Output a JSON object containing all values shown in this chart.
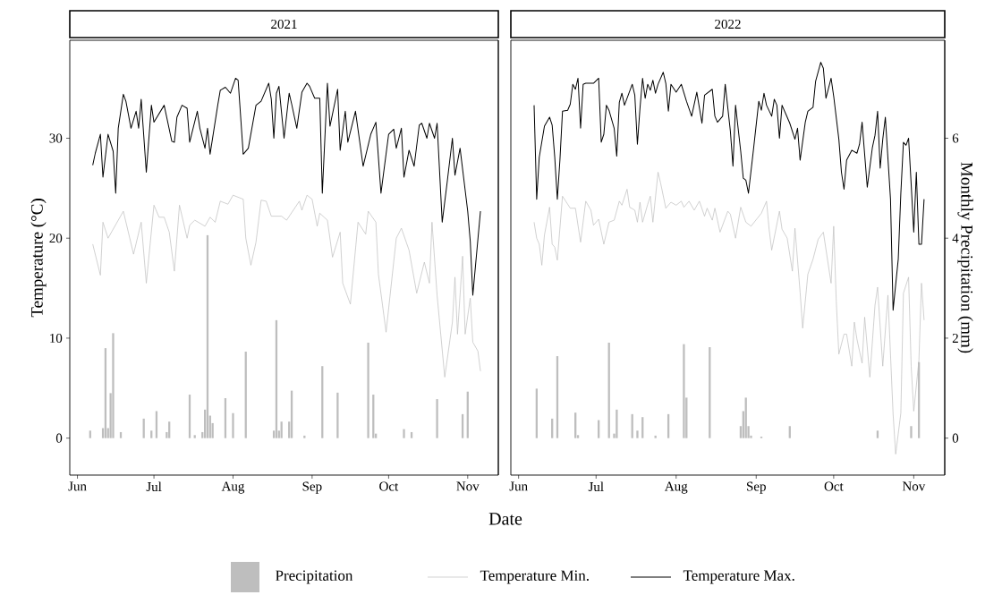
{
  "chart_data": [
    {
      "type": "line",
      "title": "2021",
      "xlabel": "Date",
      "ylabel": "Temperature (°C)",
      "legend": "bottom",
      "tick_labels": [
        "x",
        "y"
      ],
      "xlim": [
        "2021-05-29",
        "2021-11-13"
      ],
      "xticks": [
        {
          "value": "2021-06-01",
          "label": "Jun"
        },
        {
          "value": "2021-07-01",
          "label": "Jul"
        },
        {
          "value": "2021-08-01",
          "label": "Aug"
        },
        {
          "value": "2021-09-01",
          "label": "Sep"
        },
        {
          "value": "2021-10-01",
          "label": "Oct"
        },
        {
          "value": "2021-11-01",
          "label": "Nov"
        }
      ],
      "ylim": [
        -3.7,
        39.8
      ],
      "yticks": [
        0,
        10,
        20,
        30
      ],
      "y2lim": [
        -0.74,
        7.96
      ],
      "series": [
        {
          "name": "Precipitation",
          "type": "bar",
          "axis": "y2",
          "color": "#bebebe",
          "x": [
            "2021-06-06",
            "2021-06-11",
            "2021-06-12",
            "2021-06-13",
            "2021-06-14",
            "2021-06-15",
            "2021-06-18",
            "2021-06-27",
            "2021-06-30",
            "2021-07-02",
            "2021-07-06",
            "2021-07-07",
            "2021-07-15",
            "2021-07-17",
            "2021-07-20",
            "2021-07-21",
            "2021-07-22",
            "2021-07-23",
            "2021-07-24",
            "2021-07-29",
            "2021-08-01",
            "2021-08-06",
            "2021-08-17",
            "2021-08-18",
            "2021-08-19",
            "2021-08-20",
            "2021-08-23",
            "2021-08-24",
            "2021-08-29",
            "2021-09-05",
            "2021-09-11",
            "2021-09-23",
            "2021-09-25",
            "2021-09-26",
            "2021-10-07",
            "2021-10-10",
            "2021-10-20",
            "2021-10-30",
            "2021-11-01"
          ],
          "values": [
            0.15,
            0.2,
            1.8,
            0.2,
            0.9,
            2.1,
            0.12,
            0.39,
            0.15,
            0.54,
            0.12,
            0.33,
            0.87,
            0.06,
            0.12,
            0.57,
            4.06,
            0.45,
            0.3,
            0.8,
            0.5,
            1.73,
            0.15,
            2.36,
            0.15,
            0.33,
            0.33,
            0.95,
            0.05,
            1.44,
            0.91,
            1.91,
            0.87,
            0.09,
            0.18,
            0.12,
            0.78,
            0.48,
            0.93
          ]
        },
        {
          "name": "Temperature Min.",
          "color": "#bdbdbd",
          "x": [
            "2021-06-07",
            "2021-06-10",
            "2021-06-11",
            "2021-06-13",
            "2021-06-15",
            "2021-06-19",
            "2021-06-23",
            "2021-06-26",
            "2021-06-28",
            "2021-07-01",
            "2021-07-03",
            "2021-07-05",
            "2021-07-07",
            "2021-07-09",
            "2021-07-11",
            "2021-07-14",
            "2021-07-15",
            "2021-07-17",
            "2021-07-21",
            "2021-07-23",
            "2021-07-25",
            "2021-07-27",
            "2021-07-30",
            "2021-08-01",
            "2021-08-05",
            "2021-08-06",
            "2021-08-08",
            "2021-08-10",
            "2021-08-12",
            "2021-08-14",
            "2021-08-16",
            "2021-08-20",
            "2021-08-22",
            "2021-08-27",
            "2021-08-28",
            "2021-08-30",
            "2021-09-01",
            "2021-09-03",
            "2021-09-04",
            "2021-09-07",
            "2021-09-09",
            "2021-09-12",
            "2021-09-13",
            "2021-09-16",
            "2021-09-19",
            "2021-09-22",
            "2021-09-23",
            "2021-09-26",
            "2021-09-27",
            "2021-09-30",
            "2021-10-04",
            "2021-10-06",
            "2021-10-09",
            "2021-10-12",
            "2021-10-15",
            "2021-10-17",
            "2021-10-18",
            "2021-10-20",
            "2021-10-23",
            "2021-10-26",
            "2021-10-27",
            "2021-10-28",
            "2021-10-30",
            "2021-10-31",
            "2021-11-02",
            "2021-11-03",
            "2021-11-05",
            "2021-11-06"
          ],
          "values": [
            19.4,
            16.3,
            21.6,
            20.0,
            20.9,
            22.7,
            18.4,
            21.6,
            15.5,
            23.3,
            22.1,
            22.1,
            20.6,
            16.7,
            23.3,
            20.0,
            21.3,
            21.8,
            21.2,
            22.1,
            21.6,
            23.7,
            23.4,
            24.3,
            23.9,
            20.0,
            17.3,
            19.6,
            23.8,
            23.7,
            22.2,
            22.2,
            21.8,
            23.7,
            22.8,
            24.3,
            23.9,
            21.2,
            22.5,
            21.8,
            18.1,
            20.6,
            15.5,
            13.4,
            21.6,
            20.4,
            22.7,
            21.6,
            16.4,
            10.6,
            20.0,
            21.0,
            18.8,
            14.5,
            17.6,
            15.5,
            21.6,
            14.3,
            6.1,
            11.6,
            16.1,
            10.4,
            18.2,
            10.4,
            14.0,
            9.6,
            8.7,
            6.7
          ]
        },
        {
          "name": "Temperature Max.",
          "color": "#000000",
          "x": [
            "2021-06-07",
            "2021-06-08",
            "2021-06-10",
            "2021-06-11",
            "2021-06-13",
            "2021-06-15",
            "2021-06-16",
            "2021-06-17",
            "2021-06-19",
            "2021-06-20",
            "2021-06-22",
            "2021-06-24",
            "2021-06-25",
            "2021-06-26",
            "2021-06-28",
            "2021-06-30",
            "2021-07-01",
            "2021-07-05",
            "2021-07-08",
            "2021-07-09",
            "2021-07-10",
            "2021-07-12",
            "2021-07-14",
            "2021-07-15",
            "2021-07-18",
            "2021-07-19",
            "2021-07-21",
            "2021-07-22",
            "2021-07-23",
            "2021-07-26",
            "2021-07-27",
            "2021-07-29",
            "2021-07-31",
            "2021-08-02",
            "2021-08-03",
            "2021-08-05",
            "2021-08-07",
            "2021-08-10",
            "2021-08-12",
            "2021-08-15",
            "2021-08-16",
            "2021-08-17",
            "2021-08-18",
            "2021-08-19",
            "2021-08-21",
            "2021-08-23",
            "2021-08-24",
            "2021-08-26",
            "2021-08-28",
            "2021-08-30",
            "2021-08-31",
            "2021-09-02",
            "2021-09-04",
            "2021-09-05",
            "2021-09-07",
            "2021-09-08",
            "2021-09-11",
            "2021-09-12",
            "2021-09-14",
            "2021-09-15",
            "2021-09-18",
            "2021-09-21",
            "2021-09-24",
            "2021-09-26",
            "2021-09-28",
            "2021-10-01",
            "2021-10-03",
            "2021-10-04",
            "2021-10-06",
            "2021-10-07",
            "2021-10-09",
            "2021-10-11",
            "2021-10-13",
            "2021-10-14",
            "2021-10-16",
            "2021-10-17",
            "2021-10-19",
            "2021-10-20",
            "2021-10-22",
            "2021-10-24",
            "2021-10-26",
            "2021-10-27",
            "2021-10-29",
            "2021-11-01",
            "2021-11-02",
            "2021-11-03",
            "2021-11-06"
          ],
          "values": [
            27.3,
            28.5,
            30.4,
            26.1,
            30.4,
            28.7,
            24.5,
            31.0,
            34.4,
            33.7,
            31.0,
            32.7,
            31.0,
            33.9,
            26.6,
            33.3,
            31.6,
            33.3,
            29.7,
            29.6,
            32.1,
            33.3,
            33.0,
            29.6,
            32.7,
            31.0,
            29.0,
            31.0,
            28.4,
            33.3,
            34.8,
            35.1,
            34.5,
            36.0,
            35.8,
            28.4,
            29.0,
            33.3,
            33.7,
            35.5,
            33.9,
            30.0,
            34.5,
            35.2,
            30.0,
            34.5,
            33.4,
            31.0,
            34.6,
            35.5,
            35.2,
            34.0,
            34.0,
            24.5,
            35.5,
            31.2,
            34.9,
            28.8,
            32.7,
            29.6,
            32.7,
            27.2,
            30.4,
            31.6,
            24.5,
            30.4,
            30.9,
            29.0,
            31.0,
            26.1,
            28.8,
            27.2,
            31.3,
            31.5,
            30.0,
            31.5,
            30.0,
            31.5,
            21.6,
            25.7,
            30.0,
            26.3,
            29.0,
            22.7,
            19.7,
            14.3,
            22.7
          ]
        }
      ]
    },
    {
      "type": "line",
      "title": "2022",
      "y2label": "Monthly Precipitation (mm)",
      "tick_labels": [
        "x",
        "y2"
      ],
      "xlim": [
        "2022-05-29",
        "2022-11-13"
      ],
      "xticks": [
        {
          "value": "2022-06-01",
          "label": "Jun"
        },
        {
          "value": "2022-07-01",
          "label": "Jul"
        },
        {
          "value": "2022-08-01",
          "label": "Aug"
        },
        {
          "value": "2022-09-01",
          "label": "Sep"
        },
        {
          "value": "2022-10-01",
          "label": "Oct"
        },
        {
          "value": "2022-11-01",
          "label": "Nov"
        }
      ],
      "ylim": [
        -3.7,
        39.8
      ],
      "y2lim": [
        -0.74,
        7.96
      ],
      "y2ticks": [
        0,
        2,
        4,
        6
      ],
      "series": [
        {
          "type": "bar",
          "axis": "y2",
          "color": "#bebebe",
          "x": [
            "2022-06-08",
            "2022-06-14",
            "2022-06-16",
            "2022-06-23",
            "2022-06-24",
            "2022-07-02",
            "2022-07-06",
            "2022-07-08",
            "2022-07-09",
            "2022-07-15",
            "2022-07-17",
            "2022-07-19",
            "2022-07-24",
            "2022-07-29",
            "2022-08-04",
            "2022-08-05",
            "2022-08-14",
            "2022-08-26",
            "2022-08-27",
            "2022-08-28",
            "2022-08-29",
            "2022-08-30",
            "2022-09-03",
            "2022-09-14",
            "2022-10-18",
            "2022-10-31",
            "2022-11-03"
          ],
          "values": [
            0.99,
            0.39,
            1.64,
            0.51,
            0.06,
            0.36,
            1.91,
            0.09,
            0.57,
            0.48,
            0.15,
            0.42,
            0.05,
            0.48,
            1.88,
            0.81,
            1.82,
            0.24,
            0.54,
            0.81,
            0.24,
            0.05,
            0.03,
            0.24,
            0.15,
            0.24,
            1.52
          ]
        },
        {
          "color": "#bdbdbd",
          "x": [
            "2022-06-07",
            "2022-06-08",
            "2022-06-09",
            "2022-06-10",
            "2022-06-11",
            "2022-06-13",
            "2022-06-14",
            "2022-06-15",
            "2022-06-16",
            "2022-06-18",
            "2022-06-20",
            "2022-06-21",
            "2022-06-23",
            "2022-06-25",
            "2022-06-27",
            "2022-06-29",
            "2022-06-30",
            "2022-07-02",
            "2022-07-04",
            "2022-07-06",
            "2022-07-08",
            "2022-07-10",
            "2022-07-11",
            "2022-07-13",
            "2022-07-14",
            "2022-07-16",
            "2022-07-17",
            "2022-07-18",
            "2022-07-19",
            "2022-07-21",
            "2022-07-22",
            "2022-07-23",
            "2022-07-25",
            "2022-07-26",
            "2022-07-28",
            "2022-07-30",
            "2022-08-01",
            "2022-08-03",
            "2022-08-04",
            "2022-08-06",
            "2022-08-08",
            "2022-08-10",
            "2022-08-12",
            "2022-08-13",
            "2022-08-15",
            "2022-08-16",
            "2022-08-18",
            "2022-08-21",
            "2022-08-22",
            "2022-08-24",
            "2022-08-26",
            "2022-08-28",
            "2022-08-30",
            "2022-09-03",
            "2022-09-05",
            "2022-09-06",
            "2022-09-07",
            "2022-09-10",
            "2022-09-11",
            "2022-09-13",
            "2022-09-15",
            "2022-09-16",
            "2022-09-18",
            "2022-09-19",
            "2022-09-21",
            "2022-09-23",
            "2022-09-25",
            "2022-09-27",
            "2022-09-30",
            "2022-10-01",
            "2022-10-02",
            "2022-10-03",
            "2022-10-05",
            "2022-10-06",
            "2022-10-08",
            "2022-10-09",
            "2022-10-10",
            "2022-10-12",
            "2022-10-13",
            "2022-10-15",
            "2022-10-17",
            "2022-10-18",
            "2022-10-20",
            "2022-10-22",
            "2022-10-24",
            "2022-10-25",
            "2022-10-27",
            "2022-10-28",
            "2022-10-30",
            "2022-10-31",
            "2022-11-01",
            "2022-11-03",
            "2022-11-04",
            "2022-11-05"
          ],
          "values": [
            21.6,
            20.0,
            19.4,
            17.3,
            20.3,
            23.1,
            19.4,
            19.1,
            17.8,
            24.2,
            23.4,
            23.0,
            23.0,
            19.6,
            23.7,
            22.8,
            21.3,
            21.9,
            19.4,
            21.6,
            21.8,
            23.7,
            23.3,
            24.9,
            23.1,
            22.8,
            21.6,
            23.6,
            21.6,
            23.4,
            24.2,
            21.6,
            26.6,
            25.5,
            23.0,
            23.6,
            23.3,
            23.7,
            23.1,
            23.7,
            22.8,
            23.7,
            22.2,
            23.0,
            21.8,
            23.0,
            20.6,
            22.7,
            22.4,
            20.0,
            23.1,
            21.6,
            21.2,
            22.5,
            23.7,
            20.9,
            18.8,
            22.7,
            20.9,
            20.0,
            16.7,
            21.0,
            14.6,
            11.0,
            16.4,
            17.9,
            19.9,
            20.6,
            15.5,
            21.2,
            13.7,
            8.4,
            10.4,
            10.4,
            7.2,
            11.6,
            9.9,
            7.5,
            12.1,
            6.1,
            13.3,
            15.1,
            7.2,
            14.3,
            2.4,
            -1.6,
            2.5,
            14.5,
            16.1,
            7.2,
            2.7,
            7.8,
            15.5,
            11.8
          ]
        },
        {
          "color": "#000000",
          "x": [
            "2022-06-07",
            "2022-06-08",
            "2022-06-09",
            "2022-06-11",
            "2022-06-13",
            "2022-06-14",
            "2022-06-15",
            "2022-06-16",
            "2022-06-17",
            "2022-06-18",
            "2022-06-20",
            "2022-06-21",
            "2022-06-22",
            "2022-06-23",
            "2022-06-24",
            "2022-06-25",
            "2022-06-26",
            "2022-06-27",
            "2022-06-30",
            "2022-07-02",
            "2022-07-03",
            "2022-07-04",
            "2022-07-05",
            "2022-07-06",
            "2022-07-08",
            "2022-07-09",
            "2022-07-10",
            "2022-07-11",
            "2022-07-12",
            "2022-07-15",
            "2022-07-16",
            "2022-07-17",
            "2022-07-18",
            "2022-07-19",
            "2022-07-20",
            "2022-07-21",
            "2022-07-22",
            "2022-07-23",
            "2022-07-24",
            "2022-07-25",
            "2022-07-27",
            "2022-07-28",
            "2022-07-29",
            "2022-07-30",
            "2022-08-01",
            "2022-08-03",
            "2022-08-05",
            "2022-08-07",
            "2022-08-09",
            "2022-08-11",
            "2022-08-12",
            "2022-08-15",
            "2022-08-16",
            "2022-08-17",
            "2022-08-19",
            "2022-08-20",
            "2022-08-22",
            "2022-08-23",
            "2022-08-24",
            "2022-08-26",
            "2022-08-27",
            "2022-08-28",
            "2022-08-29",
            "2022-08-31",
            "2022-09-02",
            "2022-09-03",
            "2022-09-04",
            "2022-09-05",
            "2022-09-07",
            "2022-09-08",
            "2022-09-09",
            "2022-09-10",
            "2022-09-11",
            "2022-09-13",
            "2022-09-14",
            "2022-09-16",
            "2022-09-17",
            "2022-09-18",
            "2022-09-20",
            "2022-09-21",
            "2022-09-23",
            "2022-09-24",
            "2022-09-26",
            "2022-09-27",
            "2022-09-28",
            "2022-09-30",
            "2022-10-01",
            "2022-10-03",
            "2022-10-04",
            "2022-10-05",
            "2022-10-06",
            "2022-10-08",
            "2022-10-10",
            "2022-10-11",
            "2022-10-12",
            "2022-10-14",
            "2022-10-16",
            "2022-10-17",
            "2022-10-18",
            "2022-10-19",
            "2022-10-20",
            "2022-10-21",
            "2022-10-23",
            "2022-10-24",
            "2022-10-26",
            "2022-10-27",
            "2022-10-28",
            "2022-10-29",
            "2022-10-30",
            "2022-10-31",
            "2022-11-01",
            "2022-11-02",
            "2022-11-03",
            "2022-11-04",
            "2022-11-05"
          ],
          "values": [
            33.3,
            23.9,
            28.1,
            31.2,
            32.1,
            31.3,
            28.1,
            23.9,
            27.8,
            32.7,
            32.8,
            33.4,
            35.4,
            34.9,
            36.0,
            31.0,
            35.4,
            35.5,
            35.5,
            36.0,
            29.6,
            30.4,
            33.3,
            32.8,
            31.0,
            28.2,
            33.6,
            34.5,
            33.3,
            35.4,
            34.3,
            29.4,
            33.0,
            36.0,
            34.0,
            35.4,
            34.8,
            35.8,
            34.5,
            35.4,
            36.6,
            35.5,
            32.7,
            35.4,
            34.6,
            35.4,
            33.7,
            32.2,
            34.6,
            31.5,
            34.3,
            34.9,
            32.2,
            31.6,
            32.2,
            35.4,
            30.7,
            27.2,
            33.3,
            28.7,
            26.0,
            25.8,
            24.5,
            29.0,
            33.7,
            32.8,
            34.5,
            33.3,
            32.2,
            33.9,
            33.3,
            30.0,
            33.3,
            32.1,
            31.5,
            29.9,
            31.0,
            27.8,
            31.6,
            32.7,
            33.1,
            35.7,
            37.6,
            37.0,
            34.0,
            36.0,
            34.2,
            29.9,
            26.6,
            24.9,
            27.8,
            28.8,
            28.5,
            29.4,
            31.6,
            25.1,
            29.1,
            30.3,
            32.7,
            27.0,
            29.9,
            32.1,
            23.9,
            12.8,
            17.9,
            24.5,
            29.6,
            29.3,
            30.0,
            25.4,
            20.6,
            26.6,
            19.4,
            19.4,
            23.9
          ]
        }
      ]
    }
  ]
}
